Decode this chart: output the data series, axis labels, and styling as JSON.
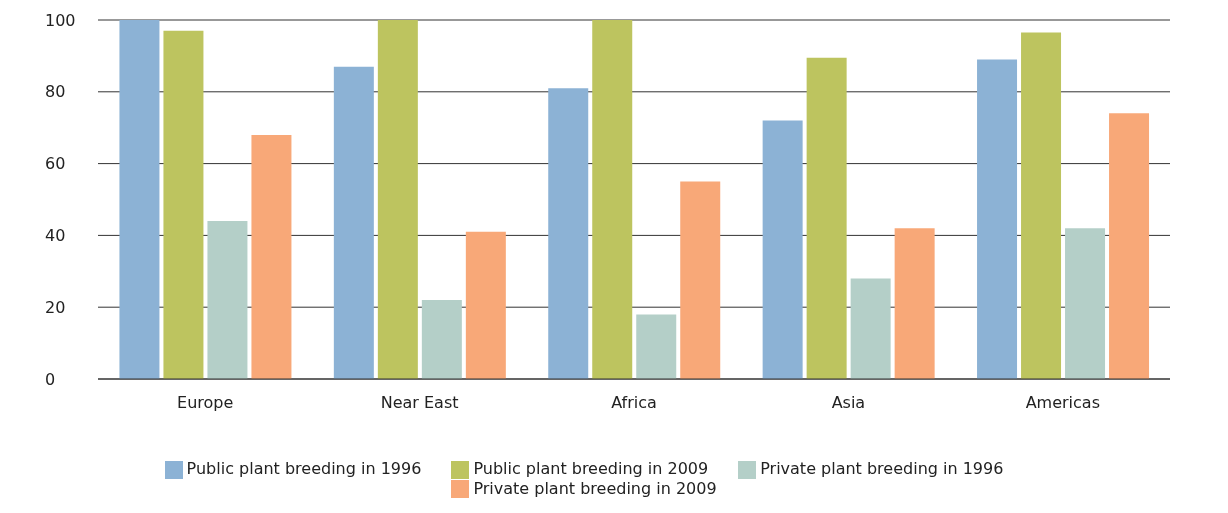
{
  "chart_data": {
    "type": "bar",
    "categories": [
      "Europe",
      "Near East",
      "Africa",
      "Asia",
      "Americas"
    ],
    "series": [
      {
        "name": "Public plant breeding in 1996",
        "color": "#8cb2d5",
        "values": [
          100,
          87,
          81,
          72,
          89
        ]
      },
      {
        "name": "Public plant breeding in 2009",
        "color": "#bdc45f",
        "values": [
          97,
          100,
          100,
          89.5,
          96.5
        ]
      },
      {
        "name": "Private plant breeding in 1996",
        "color": "#b4cfc8",
        "values": [
          44,
          22,
          18,
          28,
          42
        ]
      },
      {
        "name": "Private plant breeding in 2009",
        "color": "#f8a878",
        "values": [
          68,
          41,
          55,
          42,
          74
        ]
      }
    ],
    "ylim": [
      0,
      100
    ],
    "yticks": [
      0,
      20,
      40,
      60,
      80,
      100
    ],
    "grid": "y",
    "legend": "bottom"
  }
}
